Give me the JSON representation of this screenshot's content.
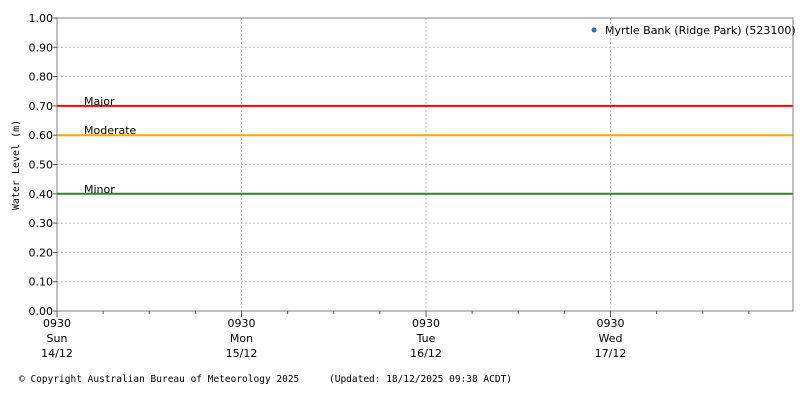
{
  "chart_data": {
    "type": "line",
    "ylabel": "Water Level (m)",
    "ylim": [
      0,
      1.0
    ],
    "y_ticks": [
      "0.00",
      "0.10",
      "0.20",
      "0.30",
      "0.40",
      "0.50",
      "0.60",
      "0.70",
      "0.80",
      "0.90",
      "1.00"
    ],
    "x_ticks": [
      {
        "time": "0930",
        "day": "Sun",
        "date": "14/12"
      },
      {
        "time": "0930",
        "day": "Mon",
        "date": "15/12"
      },
      {
        "time": "0930",
        "day": "Tue",
        "date": "16/12"
      },
      {
        "time": "0930",
        "day": "Wed",
        "date": "17/12"
      }
    ],
    "x_range_days": [
      0,
      4
    ],
    "grid": true,
    "legend": {
      "placement": "top-right",
      "entries": [
        {
          "name": "Myrtle Bank (Ridge Park) (523100)",
          "color": "#1f78c8"
        }
      ]
    },
    "series": [
      {
        "name": "Myrtle Bank (Ridge Park) (523100)",
        "values": []
      }
    ],
    "thresholds": [
      {
        "label": "Major",
        "value": 0.7,
        "color": "#ff0000"
      },
      {
        "label": "Moderate",
        "value": 0.6,
        "color": "#ffa500"
      },
      {
        "label": "Minor",
        "value": 0.4,
        "color": "#228b22"
      }
    ]
  },
  "footer": {
    "copyright": "© Copyright Australian Bureau of Meteorology 2025",
    "updated": "(Updated: 18/12/2025 09:38 ACDT)"
  }
}
